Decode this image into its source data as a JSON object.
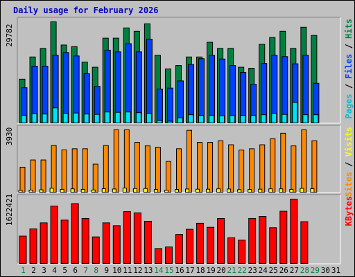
{
  "chart_data": {
    "type": "bar",
    "title": "Daily usage for February 2026",
    "days": [
      "1",
      "2",
      "3",
      "4",
      "5",
      "6",
      "7",
      "8",
      "9",
      "10",
      "11",
      "12",
      "13",
      "14",
      "15",
      "16",
      "17",
      "18",
      "19",
      "20",
      "21",
      "22",
      "23",
      "24",
      "25",
      "26",
      "27",
      "28",
      "29",
      "30",
      "31"
    ],
    "weekend_days": [
      "1",
      "7",
      "8",
      "14",
      "15",
      "21",
      "22",
      "28",
      "29"
    ],
    "top": {
      "max_label": "29782",
      "ymax": 29782,
      "labels": [
        "Pages",
        "Files",
        "Hits"
      ],
      "label_separator": " / ",
      "colors": {
        "hits": "#008040",
        "files": "#0040ff",
        "pages": "#00e0ff",
        "pages_label": "#00c0d0"
      },
      "hits": [
        13000,
        19500,
        22000,
        29782,
        23000,
        22500,
        18000,
        16500,
        25000,
        25000,
        28000,
        27000,
        29200,
        20000,
        16000,
        17000,
        19500,
        19500,
        23800,
        22000,
        22000,
        16500,
        16200,
        23200,
        25200,
        27000,
        22000,
        28200,
        25800,
        0,
        0
      ],
      "files": [
        10500,
        16800,
        16800,
        20000,
        20800,
        19800,
        14600,
        10900,
        21500,
        21000,
        23400,
        21000,
        24700,
        10100,
        10400,
        12500,
        17300,
        19000,
        20000,
        18900,
        17000,
        15000,
        11500,
        17600,
        20000,
        19600,
        17500,
        20000,
        11800,
        0,
        0
      ],
      "pages": [
        2400,
        2900,
        2800,
        4600,
        3000,
        3100,
        2800,
        2700,
        3400,
        3300,
        3400,
        3200,
        3000,
        900,
        700,
        1700,
        2600,
        2400,
        2400,
        2300,
        2400,
        2400,
        2400,
        2600,
        3000,
        2700,
        6200,
        2600,
        2600,
        0,
        0
      ]
    },
    "middle": {
      "max_label": "3930",
      "ymax": 3930,
      "labels": [
        "Sites",
        "Visits"
      ],
      "label_separator": " / ",
      "colors": {
        "visits": "#ff8800",
        "sites": "#ffff00"
      },
      "visits": [
        1600,
        2050,
        2050,
        2950,
        2680,
        2750,
        2750,
        1790,
        2950,
        3930,
        3930,
        3150,
        2930,
        2850,
        1960,
        2750,
        3900,
        3150,
        3150,
        3250,
        3000,
        2670,
        2750,
        3000,
        3380,
        3720,
        2930,
        3930,
        3250,
        0,
        0
      ],
      "sites": [
        160,
        170,
        190,
        290,
        220,
        250,
        220,
        180,
        260,
        240,
        300,
        270,
        270,
        210,
        160,
        210,
        240,
        230,
        230,
        250,
        240,
        200,
        210,
        230,
        250,
        250,
        220,
        280,
        260,
        0,
        0
      ]
    },
    "bottom": {
      "max_label": "1622421",
      "ymax": 1622421,
      "labels": [
        "KBytes"
      ],
      "colors": {
        "kbytes": "#ff0000"
      },
      "kbytes": [
        700000,
        880000,
        1030000,
        1450000,
        1100000,
        1510000,
        1140000,
        680000,
        1030000,
        960000,
        1310000,
        1280000,
        1070000,
        390000,
        430000,
        740000,
        870000,
        1020000,
        920000,
        1140000,
        660000,
        600000,
        1140000,
        1190000,
        910000,
        1320000,
        1622421,
        1060000,
        0,
        0,
        0
      ]
    }
  }
}
